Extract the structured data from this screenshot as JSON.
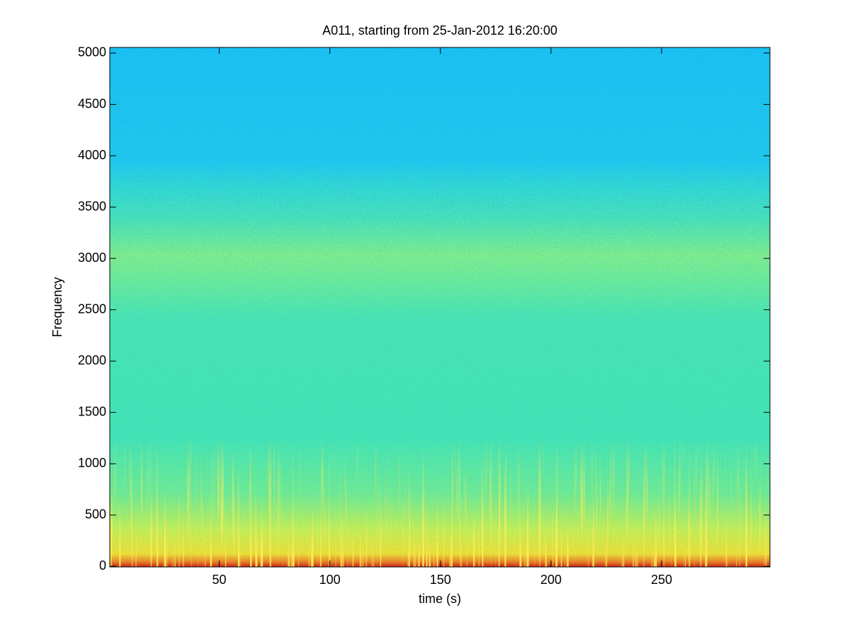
{
  "chart_data": {
    "type": "spectrogram",
    "title": "A011, starting from 25-Jan-2012 16:20:00",
    "x_label": "time (s)",
    "y_label": "Frequency",
    "xlim": [
      0.5,
      299
    ],
    "xticks": [
      50,
      100,
      150,
      200,
      250
    ],
    "ylim": [
      -5,
      5055
    ],
    "yticks": [
      0,
      500,
      1000,
      1500,
      2000,
      2500,
      3000,
      3500,
      4000,
      4500,
      5000
    ],
    "colormap": "jet"
  }
}
